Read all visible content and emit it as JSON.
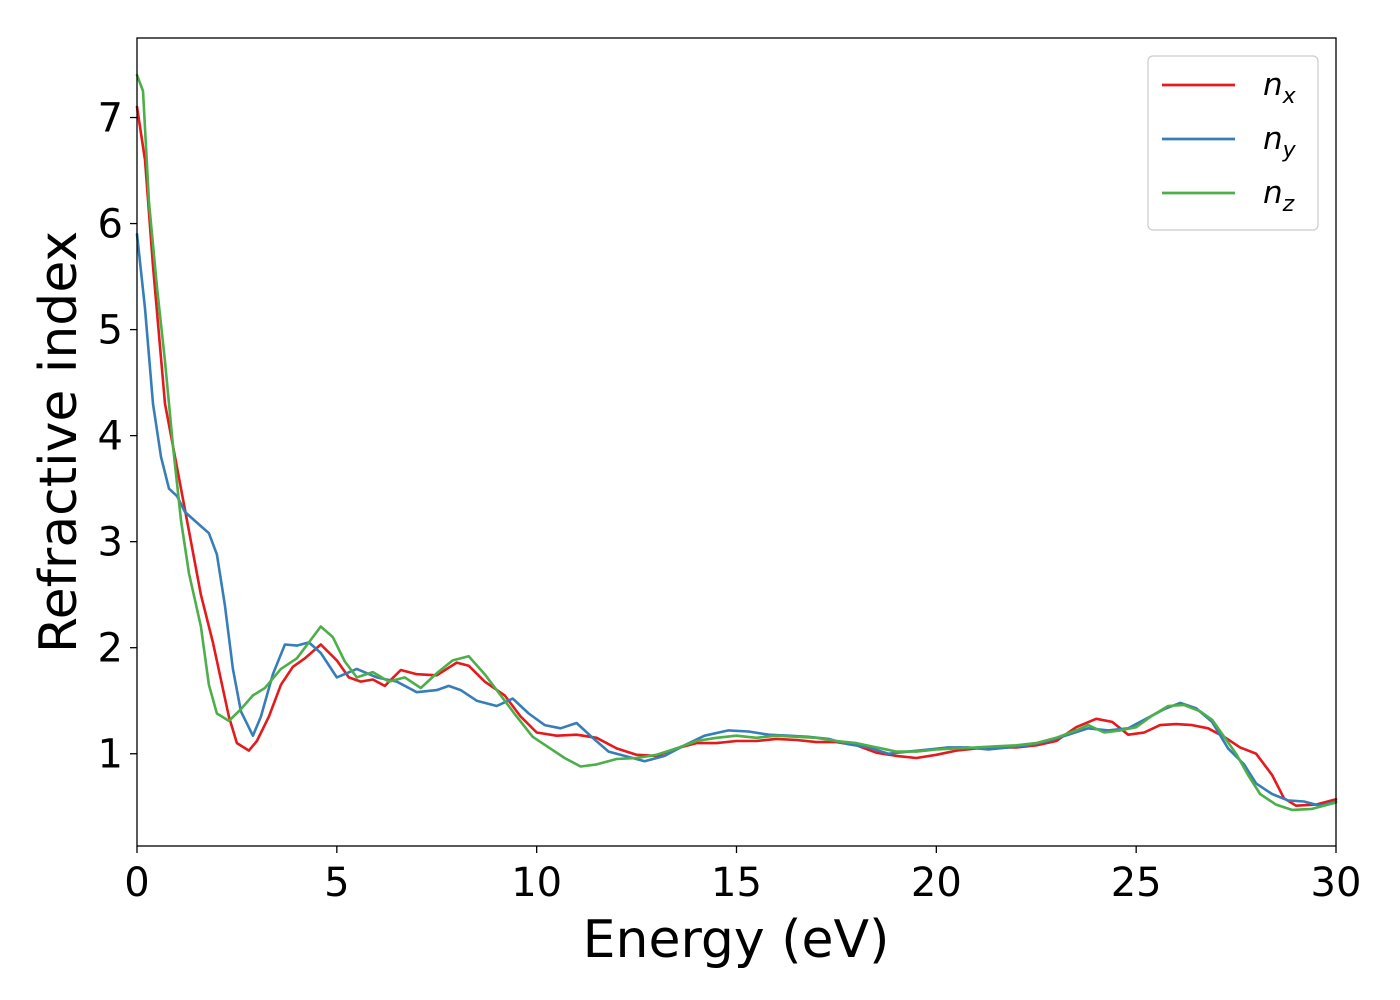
{
  "chart_data": {
    "type": "line",
    "title": "",
    "xlabel": "Energy (eV)",
    "ylabel": "Refractive index",
    "xlim": [
      0,
      30
    ],
    "ylim": [
      0.13,
      7.75
    ],
    "xticks": [
      0,
      5,
      10,
      15,
      20,
      25,
      30
    ],
    "yticks": [
      1,
      2,
      3,
      4,
      5,
      6,
      7
    ],
    "grid": false,
    "legend_position": "top-right",
    "series": [
      {
        "name": "n_x",
        "label_base": "n",
        "label_sub": "x",
        "color": "#e41a1c",
        "points": [
          [
            0,
            7.1
          ],
          [
            0.2,
            6.6
          ],
          [
            0.4,
            5.6
          ],
          [
            0.7,
            4.3
          ],
          [
            1.0,
            3.7
          ],
          [
            1.3,
            3.1
          ],
          [
            1.6,
            2.5
          ],
          [
            1.9,
            2.05
          ],
          [
            2.1,
            1.7
          ],
          [
            2.3,
            1.35
          ],
          [
            2.5,
            1.1
          ],
          [
            2.8,
            1.03
          ],
          [
            3.0,
            1.12
          ],
          [
            3.3,
            1.35
          ],
          [
            3.6,
            1.65
          ],
          [
            3.9,
            1.82
          ],
          [
            4.2,
            1.9
          ],
          [
            4.6,
            2.03
          ],
          [
            5.0,
            1.88
          ],
          [
            5.3,
            1.72
          ],
          [
            5.6,
            1.68
          ],
          [
            5.9,
            1.7
          ],
          [
            6.2,
            1.64
          ],
          [
            6.6,
            1.79
          ],
          [
            7.0,
            1.75
          ],
          [
            7.5,
            1.74
          ],
          [
            8.0,
            1.86
          ],
          [
            8.3,
            1.83
          ],
          [
            8.7,
            1.68
          ],
          [
            9.2,
            1.55
          ],
          [
            9.6,
            1.35
          ],
          [
            10.0,
            1.2
          ],
          [
            10.5,
            1.17
          ],
          [
            11.0,
            1.18
          ],
          [
            11.5,
            1.15
          ],
          [
            12.0,
            1.05
          ],
          [
            12.5,
            0.99
          ],
          [
            13.0,
            0.98
          ],
          [
            13.5,
            1.05
          ],
          [
            14.0,
            1.1
          ],
          [
            14.5,
            1.1
          ],
          [
            15.0,
            1.12
          ],
          [
            15.5,
            1.12
          ],
          [
            16.0,
            1.14
          ],
          [
            16.5,
            1.13
          ],
          [
            17.0,
            1.11
          ],
          [
            17.5,
            1.11
          ],
          [
            18.0,
            1.08
          ],
          [
            18.5,
            1.01
          ],
          [
            19.0,
            0.98
          ],
          [
            19.5,
            0.96
          ],
          [
            20.0,
            0.99
          ],
          [
            20.5,
            1.03
          ],
          [
            21.0,
            1.05
          ],
          [
            21.5,
            1.06
          ],
          [
            22.0,
            1.06
          ],
          [
            22.5,
            1.08
          ],
          [
            23.0,
            1.12
          ],
          [
            23.5,
            1.25
          ],
          [
            24.0,
            1.33
          ],
          [
            24.4,
            1.3
          ],
          [
            24.8,
            1.18
          ],
          [
            25.2,
            1.2
          ],
          [
            25.6,
            1.27
          ],
          [
            26.0,
            1.28
          ],
          [
            26.4,
            1.27
          ],
          [
            26.8,
            1.24
          ],
          [
            27.2,
            1.16
          ],
          [
            27.6,
            1.06
          ],
          [
            28.0,
            1.0
          ],
          [
            28.4,
            0.8
          ],
          [
            28.7,
            0.58
          ],
          [
            29.0,
            0.51
          ],
          [
            29.5,
            0.52
          ],
          [
            30.0,
            0.57
          ]
        ]
      },
      {
        "name": "n_y",
        "label_base": "n",
        "label_sub": "y",
        "color": "#377eb8",
        "points": [
          [
            0,
            5.9
          ],
          [
            0.2,
            5.2
          ],
          [
            0.4,
            4.3
          ],
          [
            0.6,
            3.8
          ],
          [
            0.8,
            3.5
          ],
          [
            1.0,
            3.43
          ],
          [
            1.2,
            3.28
          ],
          [
            1.5,
            3.18
          ],
          [
            1.8,
            3.08
          ],
          [
            2.0,
            2.88
          ],
          [
            2.2,
            2.4
          ],
          [
            2.4,
            1.8
          ],
          [
            2.6,
            1.4
          ],
          [
            2.9,
            1.17
          ],
          [
            3.1,
            1.35
          ],
          [
            3.4,
            1.75
          ],
          [
            3.7,
            2.03
          ],
          [
            4.0,
            2.02
          ],
          [
            4.3,
            2.05
          ],
          [
            4.6,
            1.95
          ],
          [
            5.0,
            1.72
          ],
          [
            5.5,
            1.8
          ],
          [
            6.0,
            1.72
          ],
          [
            6.5,
            1.68
          ],
          [
            7.0,
            1.58
          ],
          [
            7.5,
            1.6
          ],
          [
            7.8,
            1.64
          ],
          [
            8.1,
            1.6
          ],
          [
            8.5,
            1.5
          ],
          [
            9.0,
            1.45
          ],
          [
            9.4,
            1.52
          ],
          [
            9.8,
            1.38
          ],
          [
            10.2,
            1.27
          ],
          [
            10.6,
            1.24
          ],
          [
            11.0,
            1.29
          ],
          [
            11.4,
            1.15
          ],
          [
            11.8,
            1.02
          ],
          [
            12.2,
            0.98
          ],
          [
            12.7,
            0.93
          ],
          [
            13.2,
            0.98
          ],
          [
            13.7,
            1.08
          ],
          [
            14.2,
            1.17
          ],
          [
            14.8,
            1.22
          ],
          [
            15.3,
            1.21
          ],
          [
            15.8,
            1.18
          ],
          [
            16.3,
            1.17
          ],
          [
            16.8,
            1.16
          ],
          [
            17.3,
            1.14
          ],
          [
            17.8,
            1.09
          ],
          [
            18.3,
            1.06
          ],
          [
            18.8,
            1.0
          ],
          [
            19.3,
            1.02
          ],
          [
            19.8,
            1.04
          ],
          [
            20.3,
            1.06
          ],
          [
            20.8,
            1.06
          ],
          [
            21.3,
            1.04
          ],
          [
            21.8,
            1.06
          ],
          [
            22.3,
            1.08
          ],
          [
            22.8,
            1.12
          ],
          [
            23.3,
            1.18
          ],
          [
            23.8,
            1.24
          ],
          [
            24.3,
            1.22
          ],
          [
            24.8,
            1.24
          ],
          [
            25.2,
            1.32
          ],
          [
            25.7,
            1.42
          ],
          [
            26.1,
            1.48
          ],
          [
            26.5,
            1.43
          ],
          [
            26.9,
            1.3
          ],
          [
            27.3,
            1.05
          ],
          [
            27.7,
            0.9
          ],
          [
            28.0,
            0.72
          ],
          [
            28.4,
            0.62
          ],
          [
            28.8,
            0.56
          ],
          [
            29.2,
            0.55
          ],
          [
            29.6,
            0.51
          ],
          [
            30.0,
            0.55
          ]
        ]
      },
      {
        "name": "n_z",
        "label_base": "n",
        "label_sub": "z",
        "color": "#4daf4a",
        "points": [
          [
            0,
            7.4
          ],
          [
            0.15,
            7.25
          ],
          [
            0.3,
            6.2
          ],
          [
            0.5,
            5.4
          ],
          [
            0.7,
            4.7
          ],
          [
            0.9,
            3.9
          ],
          [
            1.1,
            3.2
          ],
          [
            1.3,
            2.7
          ],
          [
            1.6,
            2.2
          ],
          [
            1.8,
            1.65
          ],
          [
            2.0,
            1.38
          ],
          [
            2.3,
            1.31
          ],
          [
            2.6,
            1.42
          ],
          [
            2.9,
            1.55
          ],
          [
            3.2,
            1.62
          ],
          [
            3.6,
            1.8
          ],
          [
            4.0,
            1.9
          ],
          [
            4.3,
            2.05
          ],
          [
            4.6,
            2.2
          ],
          [
            4.9,
            2.1
          ],
          [
            5.2,
            1.87
          ],
          [
            5.5,
            1.72
          ],
          [
            5.9,
            1.77
          ],
          [
            6.3,
            1.68
          ],
          [
            6.7,
            1.72
          ],
          [
            7.1,
            1.62
          ],
          [
            7.5,
            1.76
          ],
          [
            7.9,
            1.88
          ],
          [
            8.3,
            1.92
          ],
          [
            8.7,
            1.75
          ],
          [
            9.1,
            1.55
          ],
          [
            9.5,
            1.35
          ],
          [
            9.9,
            1.16
          ],
          [
            10.3,
            1.06
          ],
          [
            10.7,
            0.96
          ],
          [
            11.1,
            0.88
          ],
          [
            11.5,
            0.9
          ],
          [
            12.0,
            0.95
          ],
          [
            12.5,
            0.96
          ],
          [
            13.0,
            0.99
          ],
          [
            13.5,
            1.05
          ],
          [
            14.0,
            1.12
          ],
          [
            14.5,
            1.15
          ],
          [
            15.0,
            1.17
          ],
          [
            15.5,
            1.15
          ],
          [
            16.0,
            1.17
          ],
          [
            16.5,
            1.16
          ],
          [
            17.0,
            1.15
          ],
          [
            17.5,
            1.12
          ],
          [
            18.0,
            1.1
          ],
          [
            18.5,
            1.06
          ],
          [
            19.0,
            1.02
          ],
          [
            19.5,
            1.02
          ],
          [
            20.0,
            1.04
          ],
          [
            20.5,
            1.05
          ],
          [
            21.0,
            1.06
          ],
          [
            21.5,
            1.07
          ],
          [
            22.0,
            1.08
          ],
          [
            22.5,
            1.1
          ],
          [
            23.0,
            1.15
          ],
          [
            23.5,
            1.22
          ],
          [
            23.8,
            1.27
          ],
          [
            24.2,
            1.2
          ],
          [
            24.6,
            1.22
          ],
          [
            25.0,
            1.25
          ],
          [
            25.4,
            1.36
          ],
          [
            25.8,
            1.45
          ],
          [
            26.2,
            1.46
          ],
          [
            26.6,
            1.4
          ],
          [
            26.9,
            1.32
          ],
          [
            27.2,
            1.16
          ],
          [
            27.5,
            1.0
          ],
          [
            27.8,
            0.8
          ],
          [
            28.1,
            0.62
          ],
          [
            28.5,
            0.52
          ],
          [
            28.9,
            0.47
          ],
          [
            29.4,
            0.48
          ],
          [
            30.0,
            0.54
          ]
        ]
      }
    ]
  }
}
